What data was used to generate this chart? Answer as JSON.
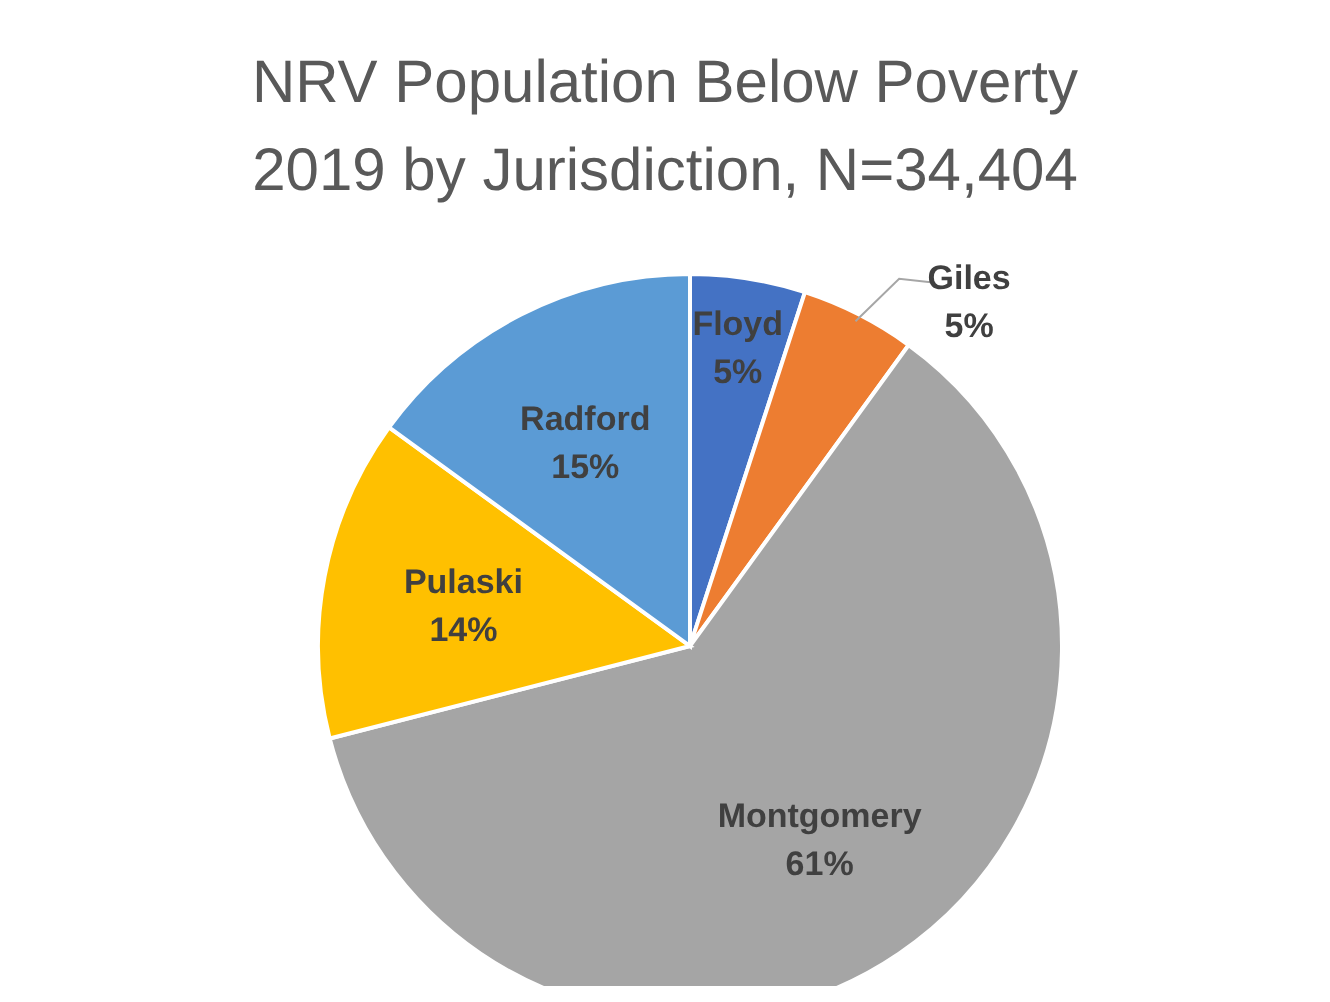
{
  "chart_data": {
    "type": "pie",
    "title": "NRV Population Below Poverty\n2019 by Jurisdiction, N=34,404",
    "categories": [
      "Floyd",
      "Giles",
      "Montgomery",
      "Pulaski",
      "Radford"
    ],
    "values": [
      5,
      5,
      61,
      14,
      15
    ],
    "value_labels": [
      "5%",
      "5%",
      "61%",
      "14%",
      "15%"
    ],
    "colors": [
      "#4472c4",
      "#ed7d31",
      "#a5a5a5",
      "#ffc000",
      "#5b9bd5"
    ]
  }
}
